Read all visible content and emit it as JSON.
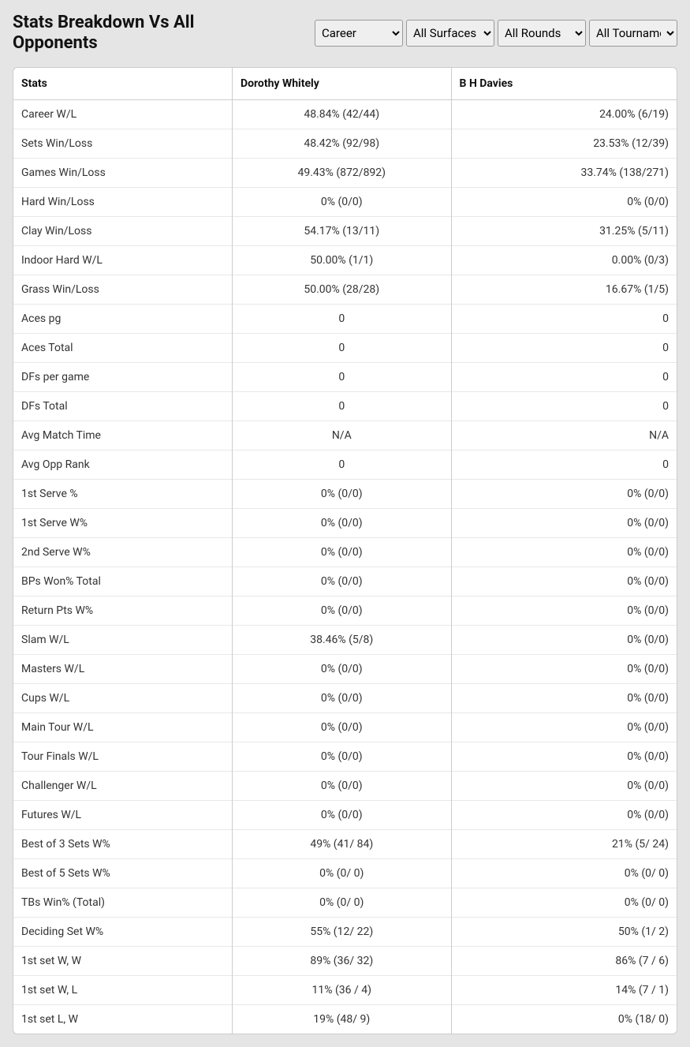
{
  "header": {
    "title": "Stats Breakdown Vs All Opponents"
  },
  "filters": {
    "period": {
      "selected": "Career",
      "options": [
        "Career"
      ]
    },
    "surface": {
      "selected": "All Surfaces",
      "options": [
        "All Surfaces"
      ]
    },
    "rounds": {
      "selected": "All Rounds",
      "options": [
        "All Rounds"
      ]
    },
    "tourn": {
      "selected": "All Tournaments",
      "options": [
        "All Tournaments"
      ]
    }
  },
  "table": {
    "columns": [
      "Stats",
      "Dorothy Whitely",
      "B H Davies"
    ],
    "col_widths_pct": [
      33,
      33,
      34
    ],
    "rows": [
      [
        "Career W/L",
        "48.84% (42/44)",
        "24.00% (6/19)"
      ],
      [
        "Sets Win/Loss",
        "48.42% (92/98)",
        "23.53% (12/39)"
      ],
      [
        "Games Win/Loss",
        "49.43% (872/892)",
        "33.74% (138/271)"
      ],
      [
        "Hard Win/Loss",
        "0% (0/0)",
        "0% (0/0)"
      ],
      [
        "Clay Win/Loss",
        "54.17% (13/11)",
        "31.25% (5/11)"
      ],
      [
        "Indoor Hard W/L",
        "50.00% (1/1)",
        "0.00% (0/3)"
      ],
      [
        "Grass Win/Loss",
        "50.00% (28/28)",
        "16.67% (1/5)"
      ],
      [
        "Aces pg",
        "0",
        "0"
      ],
      [
        "Aces Total",
        "0",
        "0"
      ],
      [
        "DFs per game",
        "0",
        "0"
      ],
      [
        "DFs Total",
        "0",
        "0"
      ],
      [
        "Avg Match Time",
        "N/A",
        "N/A"
      ],
      [
        "Avg Opp Rank",
        "0",
        "0"
      ],
      [
        "1st Serve %",
        "0% (0/0)",
        "0% (0/0)"
      ],
      [
        "1st Serve W%",
        "0% (0/0)",
        "0% (0/0)"
      ],
      [
        "2nd Serve W%",
        "0% (0/0)",
        "0% (0/0)"
      ],
      [
        "BPs Won% Total",
        "0% (0/0)",
        "0% (0/0)"
      ],
      [
        "Return Pts W%",
        "0% (0/0)",
        "0% (0/0)"
      ],
      [
        "Slam W/L",
        "38.46% (5/8)",
        "0% (0/0)"
      ],
      [
        "Masters W/L",
        "0% (0/0)",
        "0% (0/0)"
      ],
      [
        "Cups W/L",
        "0% (0/0)",
        "0% (0/0)"
      ],
      [
        "Main Tour W/L",
        "0% (0/0)",
        "0% (0/0)"
      ],
      [
        "Tour Finals W/L",
        "0% (0/0)",
        "0% (0/0)"
      ],
      [
        "Challenger W/L",
        "0% (0/0)",
        "0% (0/0)"
      ],
      [
        "Futures W/L",
        "0% (0/0)",
        "0% (0/0)"
      ],
      [
        "Best of 3 Sets W%",
        "49% (41/ 84)",
        "21% (5/ 24)"
      ],
      [
        "Best of 5 Sets W%",
        "0% (0/ 0)",
        "0% (0/ 0)"
      ],
      [
        "TBs Win% (Total)",
        "0% (0/ 0)",
        "0% (0/ 0)"
      ],
      [
        "Deciding Set W%",
        "55% (12/ 22)",
        "50% (1/ 2)"
      ],
      [
        "1st set W, W",
        "89% (36/ 32)",
        "86% (7 / 6)"
      ],
      [
        "1st set W, L",
        "11% (36 / 4)",
        "14% (7 / 1)"
      ],
      [
        "1st set L, W",
        "19% (48/ 9)",
        "0% (18/ 0)"
      ]
    ]
  },
  "style": {
    "page_bg": "#e5e5e5",
    "card_bg": "#ffffff",
    "border_color": "#cccccc",
    "row_border": "#e8e8e8",
    "text_color": "#333333",
    "title_color": "#111111",
    "font_size_title": 22,
    "font_size_table": 14,
    "header_cell_align": [
      "left",
      "left",
      "left"
    ],
    "body_cell_align": [
      "left",
      "center",
      "right"
    ]
  }
}
